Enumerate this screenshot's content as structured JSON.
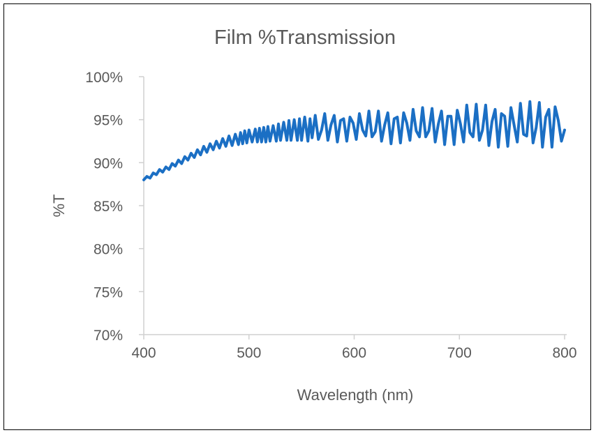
{
  "chart_data": {
    "type": "line",
    "title": "Film %Transmission",
    "xlabel": "Wavelength (nm)",
    "ylabel": "%T",
    "xlim": [
      400,
      800
    ],
    "ylim": [
      0.7,
      1.0
    ],
    "x_ticks": [
      400,
      500,
      600,
      700,
      800
    ],
    "x_tick_labels": [
      "400",
      "500",
      "600",
      "700",
      "800"
    ],
    "y_ticks": [
      0.7,
      0.75,
      0.8,
      0.85,
      0.9,
      0.95,
      1.0
    ],
    "y_tick_labels": [
      "70%",
      "75%",
      "80%",
      "85%",
      "90%",
      "95%",
      "100%"
    ],
    "grid": false,
    "legend": "none",
    "series_color": "#1b6fc4",
    "series": [
      {
        "x": [
          400,
          403,
          406,
          409,
          412,
          415,
          418,
          421,
          424,
          427,
          430,
          433,
          436,
          439,
          442,
          445,
          448,
          451,
          454,
          457,
          460,
          463,
          466,
          469,
          472,
          475,
          478,
          481,
          484,
          487,
          490,
          492,
          494,
          496,
          498,
          500,
          503,
          506,
          508,
          510,
          512,
          514,
          516,
          518,
          520,
          523,
          526,
          528,
          530,
          533,
          536,
          538,
          540,
          543,
          546,
          548,
          550,
          553,
          556,
          558,
          560,
          563,
          566,
          569,
          572,
          575,
          578,
          581,
          584,
          587,
          590,
          593,
          596,
          599,
          602,
          605,
          608,
          611,
          614,
          617,
          620,
          623,
          626,
          629,
          632,
          635,
          638,
          641,
          644,
          647,
          650,
          653,
          656,
          659,
          662,
          665,
          668,
          671,
          674,
          677,
          680,
          683,
          686,
          689,
          692,
          695,
          698,
          701,
          704,
          707,
          710,
          713,
          716,
          719,
          722,
          725,
          728,
          731,
          734,
          737,
          740,
          743,
          746,
          749,
          752,
          755,
          758,
          761,
          764,
          767,
          770,
          773,
          776,
          779,
          782,
          785,
          788,
          791,
          794,
          797,
          800
        ],
        "y": [
          0.88,
          0.884,
          0.882,
          0.888,
          0.886,
          0.892,
          0.889,
          0.895,
          0.892,
          0.899,
          0.896,
          0.903,
          0.899,
          0.907,
          0.903,
          0.911,
          0.906,
          0.915,
          0.909,
          0.919,
          0.912,
          0.922,
          0.915,
          0.925,
          0.917,
          0.928,
          0.919,
          0.931,
          0.92,
          0.933,
          0.921,
          0.935,
          0.922,
          0.937,
          0.923,
          0.938,
          0.924,
          0.939,
          0.924,
          0.94,
          0.924,
          0.941,
          0.924,
          0.942,
          0.925,
          0.943,
          0.925,
          0.945,
          0.926,
          0.947,
          0.926,
          0.949,
          0.926,
          0.95,
          0.926,
          0.951,
          0.926,
          0.953,
          0.925,
          0.951,
          0.929,
          0.955,
          0.927,
          0.938,
          0.957,
          0.926,
          0.944,
          0.955,
          0.924,
          0.949,
          0.951,
          0.925,
          0.953,
          0.946,
          0.927,
          0.957,
          0.938,
          0.931,
          0.96,
          0.93,
          0.936,
          0.96,
          0.925,
          0.944,
          0.958,
          0.922,
          0.951,
          0.953,
          0.923,
          0.958,
          0.946,
          0.926,
          0.962,
          0.937,
          0.93,
          0.964,
          0.93,
          0.937,
          0.963,
          0.924,
          0.945,
          0.96,
          0.921,
          0.954,
          0.954,
          0.921,
          0.961,
          0.945,
          0.924,
          0.967,
          0.935,
          0.93,
          0.968,
          0.926,
          0.938,
          0.967,
          0.92,
          0.948,
          0.962,
          0.918,
          0.957,
          0.954,
          0.919,
          0.964,
          0.944,
          0.924,
          0.969,
          0.933,
          0.931,
          0.971,
          0.923,
          0.941,
          0.97,
          0.918,
          0.953,
          0.962,
          0.918,
          0.965,
          0.949,
          0.925,
          0.938
        ]
      }
    ]
  }
}
